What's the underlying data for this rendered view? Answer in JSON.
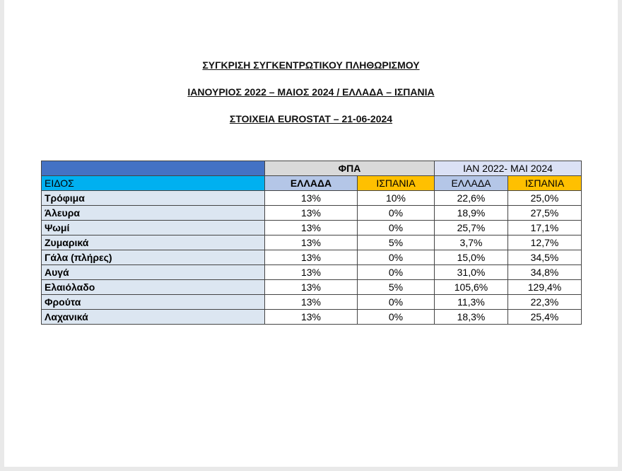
{
  "header": {
    "lines": [
      "ΣΥΓΚΡΙΣΗ ΣΥΓΚΕΝΤΡΩΤΙΚΟΥ ΠΛΗΘΩΡΙΣΜΟΥ",
      "ΙΑΝΟΥΡΙΟΣ 2022 – ΜΑΙΟΣ 2024 / ΕΛΛΑΔΑ – ΙΣΠΑΝΙΑ",
      "ΣΤΟΙΧΕΙΑ EUROSTAT – 21-06-2024"
    ]
  },
  "table": {
    "group_headers": [
      "ΦΠΑ",
      "ΙΑΝ 2022- ΜΑΙ 2024"
    ],
    "columns": [
      "ΕΙΔΟΣ",
      "ΕΛΛΑΔΑ",
      "ΙΣΠΑΝΙΑ",
      "ΕΛΛΑΔΑ",
      "ΙΣΠΑΝΙΑ"
    ],
    "rows": [
      [
        "Τρόφιμα",
        "13%",
        "10%",
        "22,6%",
        "25,0%"
      ],
      [
        "Άλευρα",
        "13%",
        "0%",
        "18,9%",
        "27,5%"
      ],
      [
        "Ψωμί",
        "13%",
        "0%",
        "25,7%",
        "17,1%"
      ],
      [
        "Ζυμαρικά",
        "13%",
        "5%",
        "3,7%",
        "12,7%"
      ],
      [
        "Γάλα (πλήρες)",
        "13%",
        "0%",
        "15,0%",
        "34,5%"
      ],
      [
        "Αυγά",
        "13%",
        "0%",
        "31,0%",
        "34,8%"
      ],
      [
        "Ελαιόλαδο",
        "13%",
        "5%",
        "105,6%",
        "129,4%"
      ],
      [
        "Φρούτα",
        "13%",
        "0%",
        "11,3%",
        "22,3%"
      ],
      [
        "Λαχανικά",
        "13%",
        "0%",
        "18,3%",
        "25,4%"
      ]
    ]
  }
}
